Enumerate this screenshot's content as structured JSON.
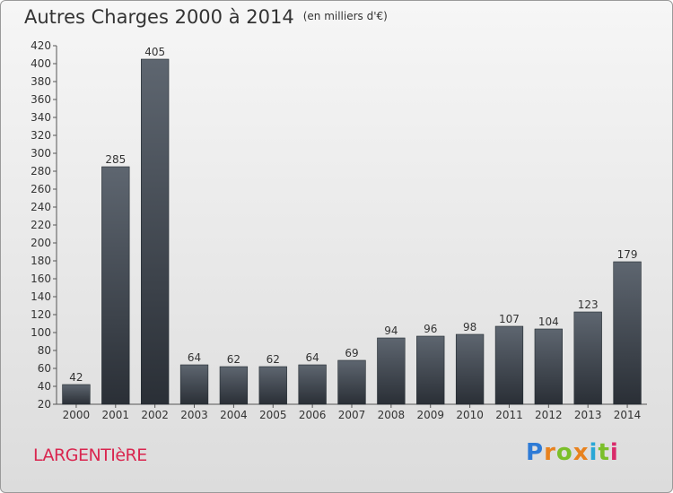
{
  "title": "Autres Charges 2000 à 2014",
  "unit_label": "(en milliers d'€)",
  "place": "LARGENTIèRE",
  "logo": {
    "text": "Proxiti",
    "letters": [
      "P",
      "r",
      "o",
      "x",
      "i",
      "t",
      "i"
    ]
  },
  "chart_data": {
    "type": "bar",
    "title": "Autres Charges 2000 à 2014",
    "subtitle": "(en milliers d'€)",
    "categories": [
      "2000",
      "2001",
      "2002",
      "2003",
      "2004",
      "2005",
      "2006",
      "2007",
      "2008",
      "2009",
      "2010",
      "2011",
      "2012",
      "2013",
      "2014"
    ],
    "values": [
      42,
      285,
      405,
      64,
      62,
      62,
      64,
      69,
      94,
      96,
      98,
      107,
      104,
      123,
      179
    ],
    "ylim": [
      20,
      420
    ],
    "yticks": [
      20,
      40,
      60,
      80,
      100,
      120,
      140,
      160,
      180,
      200,
      220,
      240,
      260,
      280,
      300,
      320,
      340,
      360,
      380,
      400,
      420
    ],
    "grid": false,
    "legend": "none",
    "bar_color_top": "#5e6670",
    "bar_color_bottom": "#2a2f36"
  }
}
